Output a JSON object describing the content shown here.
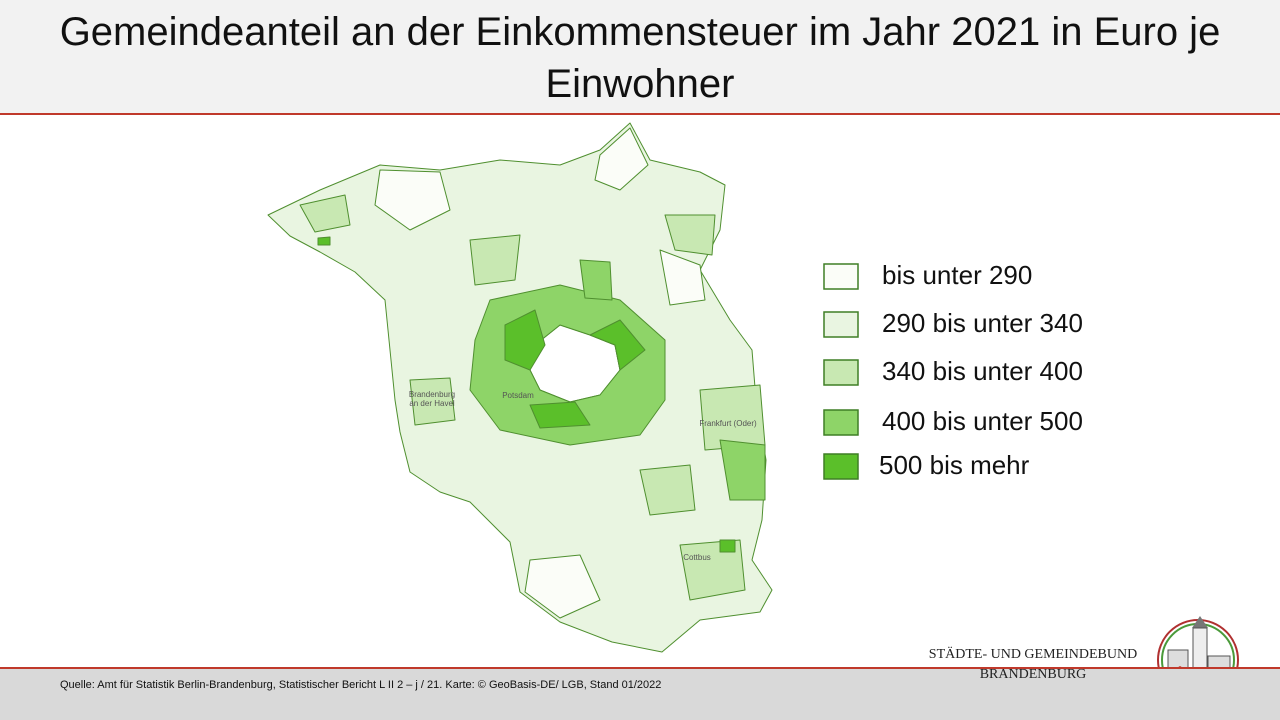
{
  "header": {
    "title": "Gemeindeanteil an der Einkommensteuer im Jahr 2021 in Euro je Einwohner"
  },
  "legend": [
    {
      "label": "bis unter 290",
      "color": "#fbfdf8"
    },
    {
      "label": "290 bis unter 340",
      "color": "#e9f5e1"
    },
    {
      "label": "340 bis unter 400",
      "color": "#c8e8b2"
    },
    {
      "label": "400 bis unter 500",
      "color": "#8ed468"
    },
    {
      "label": "500 bis mehr",
      "color": "#5bbf2a"
    }
  ],
  "places": [
    {
      "lines": [
        "Brandenburg",
        "an der Havel"
      ]
    },
    {
      "lines": [
        "Potsdam"
      ]
    },
    {
      "lines": [
        "Frankfurt (Oder)"
      ]
    },
    {
      "lines": [
        "Cottbus"
      ]
    }
  ],
  "footer": {
    "source": "Quelle: Amt für Statistik Berlin-Brandenburg, Statistischer Bericht L II 2 – j / 21. Karte: © GeoBasis-DE/ LGB, Stand 01/2022",
    "logo": [
      "STÄDTE-  UND GEMEINDEBUND",
      "BRANDENBURG"
    ]
  }
}
